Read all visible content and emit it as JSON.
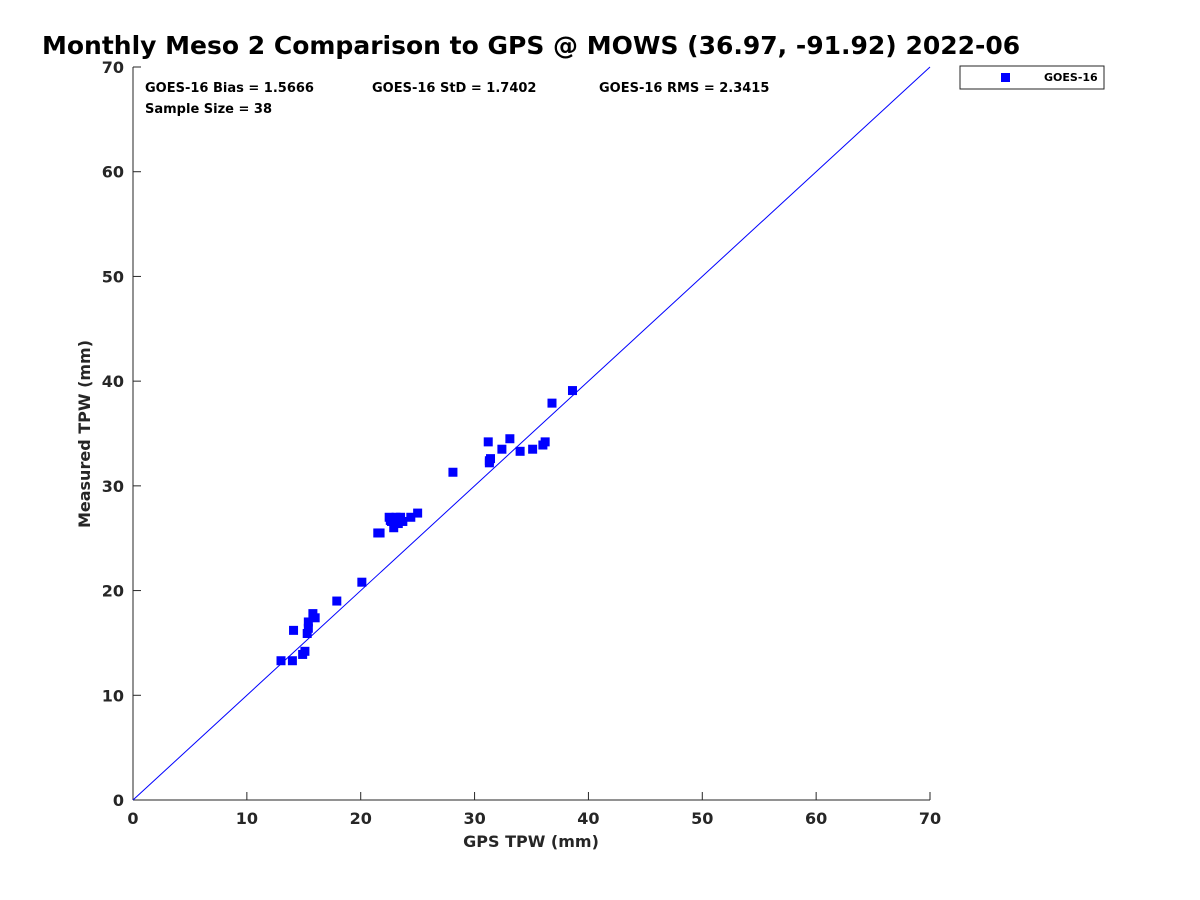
{
  "chart_data": {
    "type": "scatter",
    "title": "Monthly Meso 2 Comparison to GPS @ MOWS (36.97, -91.92) 2022-06",
    "xlabel": "GPS TPW (mm)",
    "ylabel": "Measured TPW (mm)",
    "xlim": [
      0,
      70
    ],
    "ylim": [
      0,
      70
    ],
    "xticks": [
      "0",
      "10",
      "20",
      "30",
      "40",
      "50",
      "60",
      "70"
    ],
    "yticks": [
      "0",
      "10",
      "20",
      "30",
      "40",
      "50",
      "60",
      "70"
    ],
    "grid": false,
    "legend_position": "top-right outside",
    "reference_line": "1:1",
    "stats": {
      "bias": "GOES-16 Bias = 1.5666",
      "std": "GOES-16 StD = 1.7402",
      "rms": "GOES-16 RMS = 2.3415",
      "sample": "Sample Size = 38"
    },
    "series": [
      {
        "name": "GOES-16",
        "color": "#0000ff",
        "marker": "square",
        "points": [
          [
            13.0,
            13.3
          ],
          [
            14.0,
            13.3
          ],
          [
            14.9,
            13.9
          ],
          [
            15.1,
            14.2
          ],
          [
            14.1,
            16.2
          ],
          [
            15.3,
            15.9
          ],
          [
            15.4,
            16.4
          ],
          [
            15.4,
            17.0
          ],
          [
            15.8,
            17.8
          ],
          [
            16.0,
            17.4
          ],
          [
            17.9,
            19.0
          ],
          [
            20.1,
            20.8
          ],
          [
            21.5,
            25.5
          ],
          [
            21.7,
            25.5
          ],
          [
            22.5,
            27.0
          ],
          [
            22.7,
            26.6
          ],
          [
            22.9,
            26.0
          ],
          [
            23.1,
            27.0
          ],
          [
            23.3,
            26.4
          ],
          [
            23.5,
            27.0
          ],
          [
            23.7,
            26.6
          ],
          [
            24.4,
            27.0
          ],
          [
            25.0,
            27.4
          ],
          [
            28.1,
            31.3
          ],
          [
            31.2,
            34.2
          ],
          [
            31.3,
            32.2
          ],
          [
            31.4,
            32.6
          ],
          [
            32.4,
            33.5
          ],
          [
            33.1,
            34.5
          ],
          [
            34.0,
            33.3
          ],
          [
            35.1,
            33.5
          ],
          [
            36.0,
            33.9
          ],
          [
            36.2,
            34.2
          ],
          [
            36.8,
            37.9
          ],
          [
            38.6,
            39.1
          ],
          [
            22.6,
            26.7
          ],
          [
            23.4,
            26.8
          ],
          [
            31.3,
            32.4
          ]
        ]
      }
    ]
  }
}
